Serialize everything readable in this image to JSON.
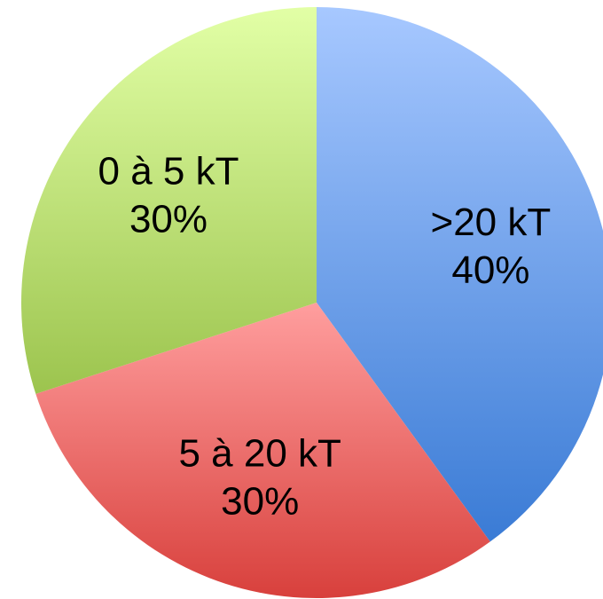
{
  "chart_data": {
    "type": "pie",
    "slices": [
      {
        "category": ">20 kT",
        "value": 40,
        "label": "40%",
        "color": "#4f86d8"
      },
      {
        "category": "5 à 20 kT",
        "value": 30,
        "label": "30%",
        "color": "#dd4f4c"
      },
      {
        "category": "0 à 5 kT",
        "value": 30,
        "label": "30%",
        "color": "#a8d060"
      }
    ],
    "start_angle_deg": 0,
    "direction": "clockwise",
    "legend": "none"
  }
}
